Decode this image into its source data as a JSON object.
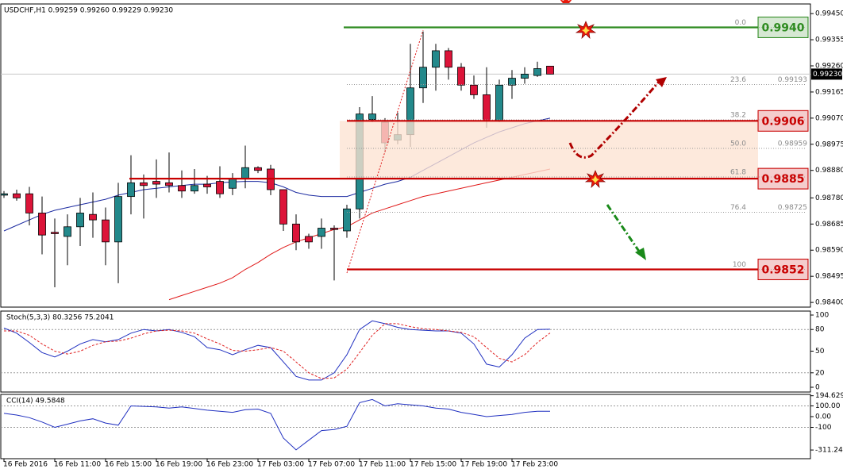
{
  "chart_data": [
    {
      "type": "candlestick",
      "title": "USDCHF,H1 0.99259 0.99260 0.99229 0.99230",
      "categories": [
        "16 Feb 2016",
        null,
        null,
        null,
        "16 Feb 11:00",
        null,
        null,
        null,
        "16 Feb 15:00",
        null,
        null,
        null,
        "16 Feb 19:00",
        null,
        null,
        null,
        "16 Feb 23:00",
        null,
        null,
        null,
        "17 Feb 03:00",
        null,
        null,
        null,
        "17 Feb 07:00",
        null,
        null,
        null,
        "17 Feb 11:00",
        null,
        null,
        null,
        "17 Feb 15:00",
        null,
        null,
        null,
        "17 Feb 19:00",
        null,
        null,
        null,
        "17 Feb 23:00",
        null,
        null,
        null
      ],
      "open": [
        0.9879,
        0.98795,
        0.98795,
        0.98725,
        0.98655,
        0.9864,
        0.98675,
        0.9872,
        0.987,
        0.9862,
        0.98785,
        0.98835,
        0.9884,
        0.98835,
        0.98825,
        0.98805,
        0.9883,
        0.9884,
        0.98815,
        0.9885,
        0.9889,
        0.98885,
        0.9881,
        0.98685,
        0.9864,
        0.9864,
        0.9867,
        0.9866,
        0.9874,
        0.99065,
        0.99055,
        0.9899,
        0.9901,
        0.9918,
        0.99255,
        0.99315,
        0.99255,
        0.9919,
        0.99155,
        0.9906,
        0.9919,
        0.99215,
        0.99225,
        0.99259
      ],
      "high": [
        0.98805,
        0.9881,
        0.9882,
        0.98785,
        0.98705,
        0.9872,
        0.9878,
        0.988,
        0.98745,
        0.98835,
        0.98935,
        0.98865,
        0.9892,
        0.98945,
        0.9888,
        0.98885,
        0.9886,
        0.98895,
        0.9887,
        0.9897,
        0.98895,
        0.989,
        0.9881,
        0.9872,
        0.9865,
        0.98705,
        0.9868,
        0.98755,
        0.9911,
        0.9915,
        0.9907,
        0.9909,
        0.9934,
        0.99385,
        0.9934,
        0.99325,
        0.9927,
        0.99225,
        0.99255,
        0.9921,
        0.99245,
        0.99255,
        0.99275,
        0.9926
      ],
      "low": [
        0.9878,
        0.9877,
        0.9868,
        0.98575,
        0.98455,
        0.98535,
        0.98605,
        0.98635,
        0.98535,
        0.9847,
        0.9872,
        0.98705,
        0.9878,
        0.988,
        0.9878,
        0.98795,
        0.98795,
        0.9878,
        0.9879,
        0.98815,
        0.9887,
        0.9879,
        0.9866,
        0.9859,
        0.98595,
        0.98595,
        0.9848,
        0.98635,
        0.98705,
        0.99055,
        0.98945,
        0.98975,
        0.98965,
        0.99125,
        0.9917,
        0.9921,
        0.9917,
        0.9914,
        0.99035,
        0.99055,
        0.9914,
        0.99195,
        0.9922,
        0.99229
      ],
      "close": [
        0.98795,
        0.9878,
        0.98725,
        0.98645,
        0.9865,
        0.98675,
        0.98725,
        0.987,
        0.9862,
        0.98785,
        0.98835,
        0.98825,
        0.9883,
        0.98825,
        0.98805,
        0.98825,
        0.9882,
        0.98795,
        0.9885,
        0.9889,
        0.9888,
        0.9881,
        0.98685,
        0.9862,
        0.9862,
        0.9867,
        0.98665,
        0.9874,
        0.99085,
        0.99085,
        0.9898,
        0.9901,
        0.9918,
        0.99255,
        0.99315,
        0.99255,
        0.9919,
        0.99155,
        0.9906,
        0.9919,
        0.99215,
        0.9923,
        0.9925,
        0.9923
      ],
      "up_color": "#23898b",
      "down_color": "#dc1439",
      "series": [
        {
          "color": "#1b2aa0",
          "values": [
            0.9866,
            0.9868,
            0.987,
            0.9872,
            0.98735,
            0.98745,
            0.98755,
            0.98765,
            0.98775,
            0.9879,
            0.988,
            0.9881,
            0.98815,
            0.9882,
            0.98825,
            0.9883,
            0.9883,
            0.98835,
            0.98838,
            0.9884,
            0.9884,
            0.98835,
            0.9882,
            0.988,
            0.9879,
            0.98785,
            0.98785,
            0.98785,
            0.988,
            0.98815,
            0.9883,
            0.9884,
            0.98855,
            0.9888,
            0.98905,
            0.9893,
            0.98955,
            0.9898,
            0.99,
            0.9902,
            0.99035,
            0.9905,
            0.9906,
            0.9907
          ]
        },
        {
          "color": "#e01818",
          "values": [
            null,
            null,
            null,
            null,
            null,
            null,
            null,
            null,
            null,
            null,
            null,
            null,
            null,
            0.9841,
            0.98425,
            0.9844,
            0.98455,
            0.9847,
            0.9849,
            0.9852,
            0.98545,
            0.98575,
            0.986,
            0.9862,
            0.98635,
            0.9865,
            0.98665,
            0.98675,
            0.987,
            0.98725,
            0.9874,
            0.98755,
            0.9877,
            0.98785,
            0.98795,
            0.98805,
            0.98815,
            0.98825,
            0.98835,
            0.98845,
            0.98855,
            0.98865,
            0.98875,
            0.98885
          ]
        }
      ],
      "ylim": [
        0.98383,
        0.99485
      ],
      "yticks": [
        {
          "value": 0.9945,
          "label": "0.99450"
        },
        0.99355,
        {
          "value": 0.9926,
          "label": "0.99260"
        },
        0.99165,
        {
          "value": 0.9907,
          "label": "0.99070"
        },
        0.98975,
        {
          "value": 0.9888,
          "label": "0.98880"
        },
        {
          "value": 0.9878,
          "label": "0.98780"
        },
        0.98685,
        {
          "value": 0.9859,
          "label": "0.98590"
        },
        0.98495,
        {
          "value": 0.984,
          "label": "0.98400"
        }
      ],
      "current_price": {
        "value": 0.9923,
        "label": "0.99230"
      },
      "levels": [
        {
          "value": 0.994,
          "label": "0.9940",
          "color": "#2e8b20"
        },
        {
          "value": 0.9906,
          "label": "0.9906",
          "color": "#c80000"
        },
        {
          "value": 0.9885,
          "label": "0.9885",
          "color": "#c80000"
        },
        {
          "value": 0.9852,
          "label": "0.9852",
          "color": "#c80000"
        }
      ],
      "fib": [
        {
          "ratio": {
            "value": 0,
            "label": "0.0"
          }
        },
        {
          "ratio": 23.6,
          "price": 0.99193
        },
        {
          "ratio": 38.2
        },
        {
          "ratio": {
            "value": 50,
            "label": "50.0"
          },
          "price": 0.98959
        },
        {
          "ratio": 61.8
        },
        {
          "ratio": 76.4,
          "price": 0.98725
        },
        {
          "ratio": 100
        }
      ]
    },
    {
      "type": "line",
      "title": "Stoch(5,3,3) 80.3256 75.2041",
      "series": [
        {
          "color": "#1f2fc0",
          "values": [
            82,
            75,
            62,
            48,
            42,
            50,
            60,
            66,
            63,
            66,
            75,
            80,
            78,
            80,
            76,
            70,
            55,
            52,
            45,
            52,
            58,
            55,
            35,
            15,
            10,
            10,
            20,
            45,
            80,
            92,
            88,
            83,
            80,
            79,
            78,
            78,
            75,
            60,
            32,
            28,
            45,
            68,
            80,
            80.3256
          ]
        },
        {
          "color": "#e02020",
          "dashed": true,
          "values": [
            78,
            78,
            72,
            60,
            50,
            46,
            50,
            58,
            63,
            64,
            68,
            74,
            78,
            79,
            78,
            75,
            67,
            60,
            51,
            50,
            52,
            55,
            50,
            35,
            20,
            12,
            13,
            25,
            48,
            72,
            88,
            88,
            84,
            81,
            80,
            78,
            76,
            70,
            55,
            40,
            35,
            45,
            62,
            75.2041
          ]
        }
      ],
      "ylim": [
        -6.6,
        105.5
      ],
      "yticks": [
        100,
        80,
        50,
        20,
        0
      ],
      "levels": [
        80,
        20
      ]
    },
    {
      "type": "line",
      "title": "CCI(14) 49.5848",
      "series": [
        {
          "color": "#1f2fc0",
          "values": [
            30,
            15,
            -10,
            -50,
            -100,
            -70,
            -40,
            -20,
            -60,
            -80,
            100,
            95,
            90,
            80,
            90,
            75,
            60,
            50,
            40,
            65,
            70,
            30,
            -200,
            -310,
            -220,
            -130,
            -120,
            -90,
            130,
            160,
            100,
            120,
            110,
            100,
            80,
            70,
            40,
            20,
            0,
            10,
            20,
            40,
            50,
            49.5848
          ]
        }
      ],
      "ylim": [
        -392,
        207
      ],
      "yticks": [
        194.6291,
        {
          "value": 100,
          "label": "100.00"
        },
        {
          "value": 0,
          "label": "0.00"
        },
        -100,
        -311.241
      ],
      "levels": [
        100,
        -100
      ]
    }
  ]
}
